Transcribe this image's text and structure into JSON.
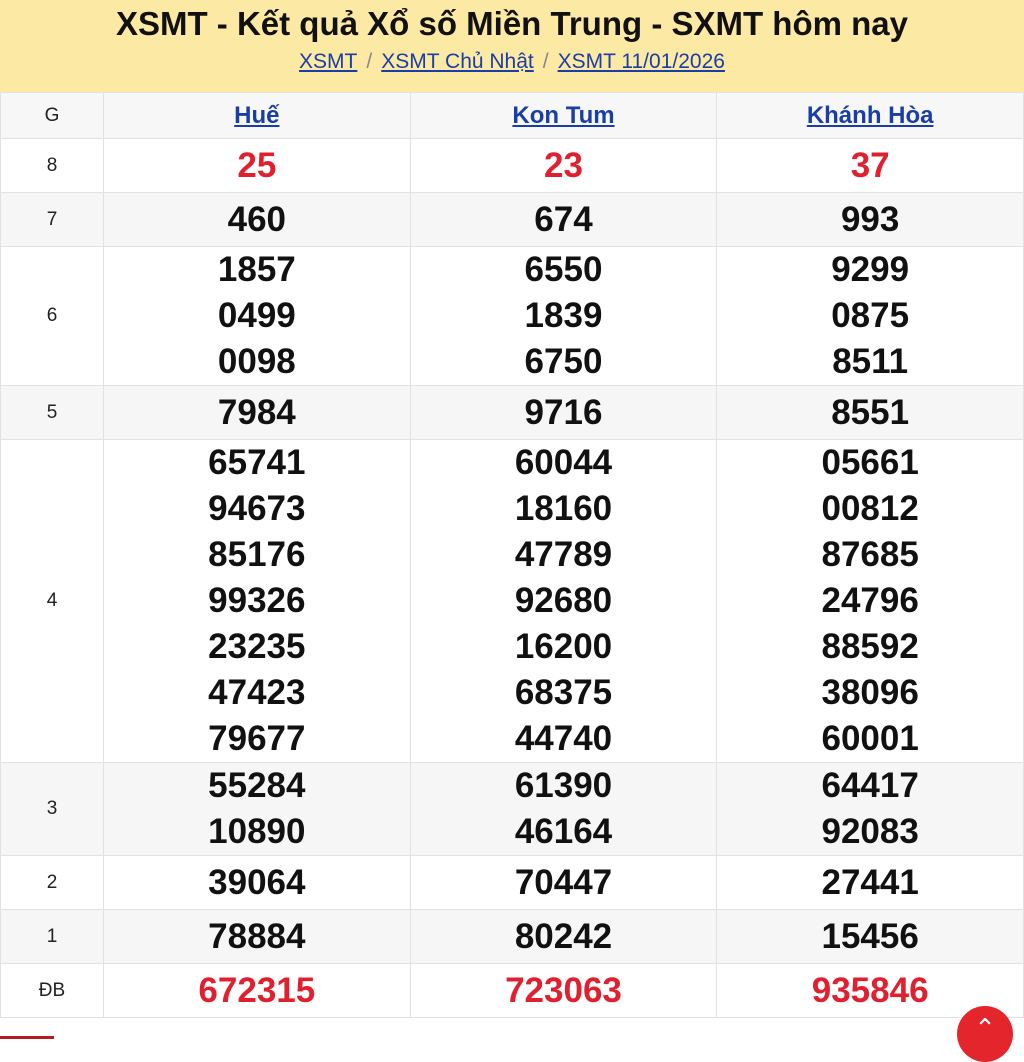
{
  "header": {
    "title": "XSMT - Kết quả Xổ số Miền Trung - SXMT hôm nay",
    "breadcrumb": [
      "XSMT",
      "XSMT Chủ Nhật",
      "XSMT 11/01/2026"
    ],
    "separator": "/"
  },
  "table": {
    "prize_header": "G",
    "provinces": [
      "Huế",
      "Kon Tum",
      "Khánh Hòa"
    ],
    "rows": [
      {
        "prize": "8",
        "red": true,
        "values": [
          [
            "25"
          ],
          [
            "23"
          ],
          [
            "37"
          ]
        ]
      },
      {
        "prize": "7",
        "values": [
          [
            "460"
          ],
          [
            "674"
          ],
          [
            "993"
          ]
        ]
      },
      {
        "prize": "6",
        "values": [
          [
            "1857",
            "0499",
            "0098"
          ],
          [
            "6550",
            "1839",
            "6750"
          ],
          [
            "9299",
            "0875",
            "8511"
          ]
        ]
      },
      {
        "prize": "5",
        "values": [
          [
            "7984"
          ],
          [
            "9716"
          ],
          [
            "8551"
          ]
        ]
      },
      {
        "prize": "4",
        "values": [
          [
            "65741",
            "94673",
            "85176",
            "99326",
            "23235",
            "47423",
            "79677"
          ],
          [
            "60044",
            "18160",
            "47789",
            "92680",
            "16200",
            "68375",
            "44740"
          ],
          [
            "05661",
            "00812",
            "87685",
            "24796",
            "88592",
            "38096",
            "60001"
          ]
        ]
      },
      {
        "prize": "3",
        "values": [
          [
            "55284",
            "10890"
          ],
          [
            "61390",
            "46164"
          ],
          [
            "64417",
            "92083"
          ]
        ]
      },
      {
        "prize": "2",
        "values": [
          [
            "39064"
          ],
          [
            "70447"
          ],
          [
            "27441"
          ]
        ]
      },
      {
        "prize": "1",
        "values": [
          [
            "78884"
          ],
          [
            "80242"
          ],
          [
            "15456"
          ]
        ]
      },
      {
        "prize": "ĐB",
        "red": true,
        "values": [
          [
            "672315"
          ],
          [
            "723063"
          ],
          [
            "935846"
          ]
        ]
      }
    ]
  },
  "colors": {
    "accent_red": "#e0202e",
    "link": "#1a3ea8",
    "banner": "#fce9a3"
  },
  "scroll_top_icon": "chevron-up-icon"
}
